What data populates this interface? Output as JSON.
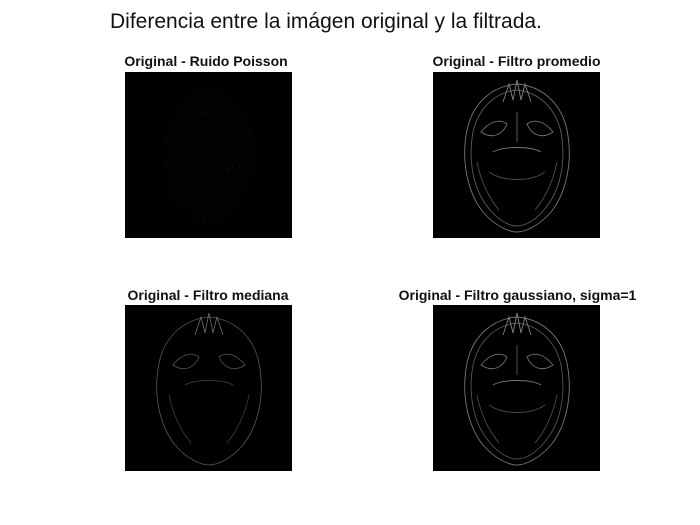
{
  "figure": {
    "title": "Diferencia entre la imágen original y la filtrada."
  },
  "panels": [
    {
      "title": "Original - Ruido Poisson"
    },
    {
      "title": "Original - Filtro promedio"
    },
    {
      "title": "Original - Filtro mediana"
    },
    {
      "title": "Original - Filtro gaussiano, sigma=1"
    }
  ],
  "colors": {
    "background": "#ffffff",
    "image_background": "#000000",
    "edge_strokes": "#9a9a9a"
  }
}
